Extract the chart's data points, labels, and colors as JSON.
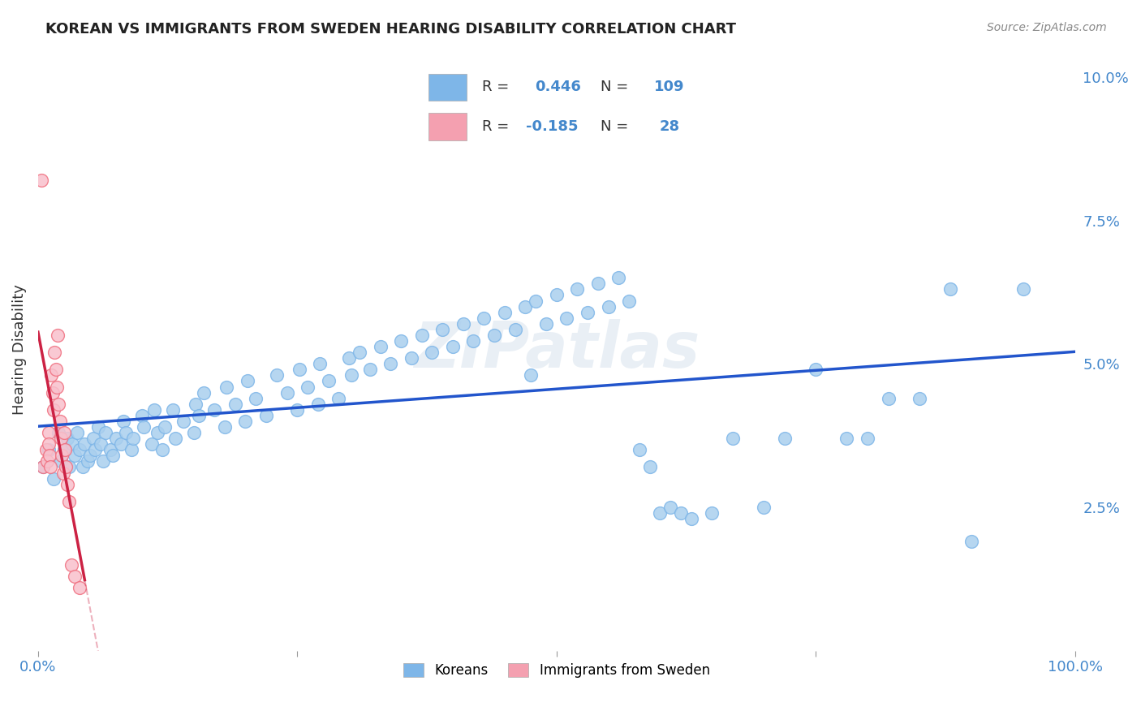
{
  "title": "KOREAN VS IMMIGRANTS FROM SWEDEN HEARING DISABILITY CORRELATION CHART",
  "source": "Source: ZipAtlas.com",
  "ylabel": "Hearing Disability",
  "ylabel_right_ticks": [
    "2.5%",
    "5.0%",
    "7.5%",
    "10.0%"
  ],
  "ylabel_right_values": [
    2.5,
    5.0,
    7.5,
    10.0
  ],
  "xlim": [
    0,
    100
  ],
  "ylim": [
    0,
    10.5
  ],
  "watermark": "ZIPatlas",
  "legend_korean_R": "0.446",
  "legend_korean_N": "109",
  "legend_sweden_R": "-0.185",
  "legend_sweden_N": "28",
  "korean_color": "#7EB6E8",
  "sweden_color": "#F4A0B0",
  "korean_line_color": "#2255CC",
  "sweden_line_color": "#CC2244",
  "korea_dot_color_fill": "#AACFEE",
  "korea_dot_color_edge": "#7EB6E8",
  "sweden_dot_color_fill": "#F8C0CC",
  "sweden_dot_color_edge": "#F07080",
  "background_color": "#FFFFFF",
  "grid_color": "#CCCCCC",
  "koreans_scatter_x": [
    0.5,
    1.0,
    1.5,
    2.0,
    2.2,
    2.5,
    2.8,
    3.0,
    3.3,
    3.5,
    3.8,
    4.0,
    4.3,
    4.5,
    4.8,
    5.0,
    5.3,
    5.5,
    5.8,
    6.0,
    6.3,
    6.5,
    7.0,
    7.2,
    7.5,
    8.0,
    8.2,
    8.5,
    9.0,
    9.2,
    10.0,
    10.2,
    11.0,
    11.2,
    11.5,
    12.0,
    12.2,
    13.0,
    13.2,
    14.0,
    15.0,
    15.2,
    15.5,
    16.0,
    17.0,
    18.0,
    18.2,
    19.0,
    20.0,
    20.2,
    21.0,
    22.0,
    23.0,
    24.0,
    25.0,
    25.2,
    26.0,
    27.0,
    27.2,
    28.0,
    29.0,
    30.0,
    30.2,
    31.0,
    32.0,
    33.0,
    34.0,
    35.0,
    36.0,
    37.0,
    38.0,
    39.0,
    40.0,
    41.0,
    42.0,
    43.0,
    44.0,
    45.0,
    46.0,
    47.0,
    47.5,
    48.0,
    49.0,
    50.0,
    51.0,
    52.0,
    53.0,
    54.0,
    55.0,
    56.0,
    57.0,
    58.0,
    59.0,
    60.0,
    61.0,
    62.0,
    63.0,
    65.0,
    67.0,
    70.0,
    72.0,
    75.0,
    78.0,
    80.0,
    82.0,
    85.0,
    88.0,
    90.0,
    95.0
  ],
  "koreans_scatter_y": [
    3.2,
    3.5,
    3.0,
    3.8,
    3.3,
    3.5,
    3.7,
    3.2,
    3.6,
    3.4,
    3.8,
    3.5,
    3.2,
    3.6,
    3.3,
    3.4,
    3.7,
    3.5,
    3.9,
    3.6,
    3.3,
    3.8,
    3.5,
    3.4,
    3.7,
    3.6,
    4.0,
    3.8,
    3.5,
    3.7,
    4.1,
    3.9,
    3.6,
    4.2,
    3.8,
    3.5,
    3.9,
    4.2,
    3.7,
    4.0,
    3.8,
    4.3,
    4.1,
    4.5,
    4.2,
    3.9,
    4.6,
    4.3,
    4.0,
    4.7,
    4.4,
    4.1,
    4.8,
    4.5,
    4.2,
    4.9,
    4.6,
    4.3,
    5.0,
    4.7,
    4.4,
    5.1,
    4.8,
    5.2,
    4.9,
    5.3,
    5.0,
    5.4,
    5.1,
    5.5,
    5.2,
    5.6,
    5.3,
    5.7,
    5.4,
    5.8,
    5.5,
    5.9,
    5.6,
    6.0,
    4.8,
    6.1,
    5.7,
    6.2,
    5.8,
    6.3,
    5.9,
    6.4,
    6.0,
    6.5,
    6.1,
    3.5,
    3.2,
    2.4,
    2.5,
    2.4,
    2.3,
    2.4,
    3.7,
    2.5,
    3.7,
    4.9,
    3.7,
    3.7,
    4.4,
    4.4,
    6.3,
    1.9,
    6.3
  ],
  "sweden_scatter_x": [
    0.3,
    0.5,
    0.8,
    0.9,
    1.0,
    1.0,
    1.1,
    1.2,
    1.3,
    1.4,
    1.5,
    1.6,
    1.7,
    1.8,
    1.9,
    2.0,
    2.1,
    2.2,
    2.3,
    2.4,
    2.5,
    2.6,
    2.7,
    2.8,
    3.0,
    3.2,
    3.5,
    4.0
  ],
  "sweden_scatter_y": [
    8.2,
    3.2,
    3.5,
    3.3,
    3.8,
    3.6,
    3.4,
    3.2,
    4.8,
    4.5,
    4.2,
    5.2,
    4.9,
    4.6,
    5.5,
    4.3,
    4.0,
    3.7,
    3.4,
    3.1,
    3.8,
    3.5,
    3.2,
    2.9,
    2.6,
    1.5,
    1.3,
    1.1
  ]
}
